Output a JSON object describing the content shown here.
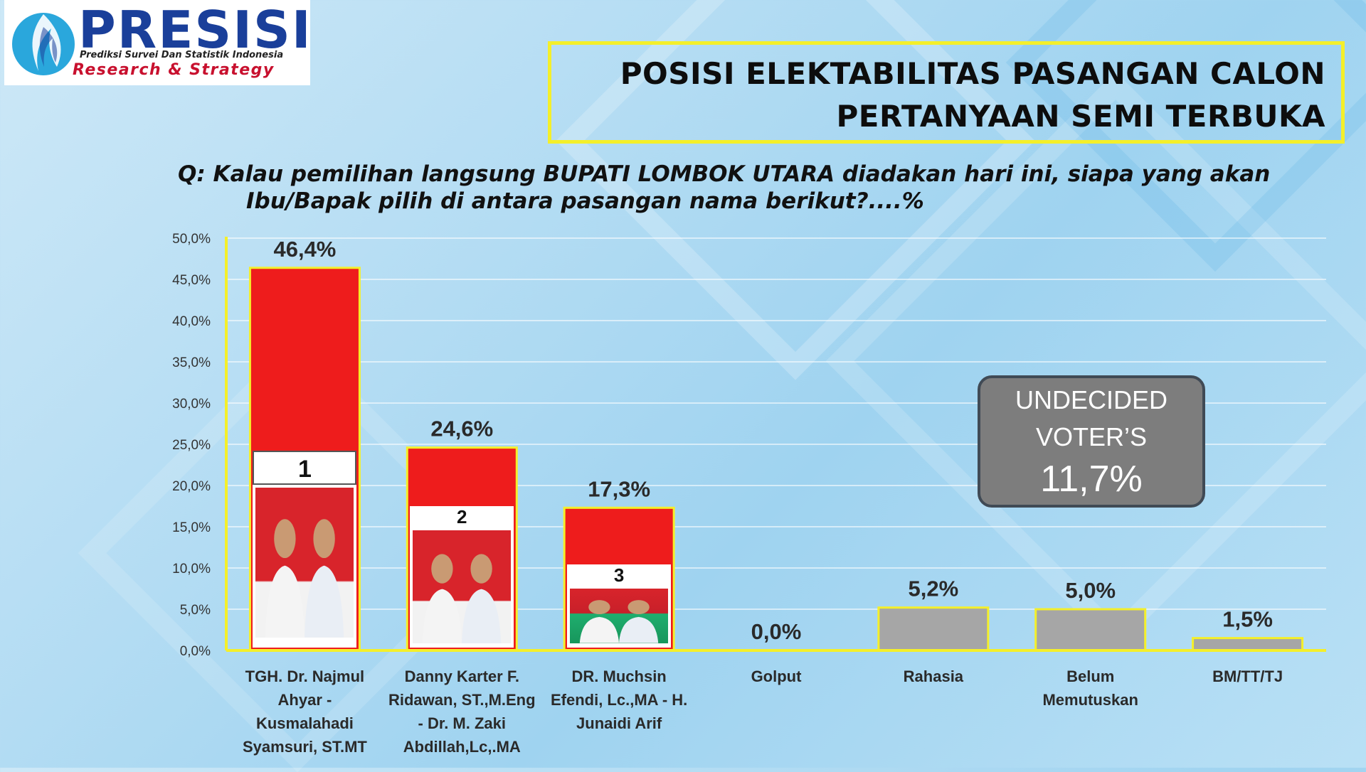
{
  "logo": {
    "name": "PRESISI",
    "tagline": "Prediksi Survei Dan Statistik Indonesia",
    "sub": "Research & Strategy"
  },
  "title": {
    "line1": "POSISI ELEKTABILITAS PASANGAN CALON",
    "line2": "PERTANYAAN SEMI TERBUKA"
  },
  "question": {
    "line1": "Q: Kalau pemilihan langsung BUPATI LOMBOK UTARA diadakan hari ini, siapa yang akan",
    "line2": "Ibu/Bapak pilih di antara pasangan nama berikut?....%"
  },
  "undecided": {
    "line1": "UNDECIDED",
    "line2": "VOTER’S",
    "value": "11,7%"
  },
  "colors": {
    "candidate_bar": "#ee1c1c",
    "other_bar": "#a6a6a6",
    "bar_outline": "#f4ef2a",
    "axis": "#f4ef2a",
    "gridline": "#ffffff"
  },
  "chart_data": {
    "type": "bar",
    "categories": [
      [
        "TGH. Dr. Najmul",
        "Ahyar -",
        "Kusmalahadi",
        "Syamsuri, ST.MT"
      ],
      [
        "Danny Karter F.",
        "Ridawan, ST.,M.Eng",
        "- Dr. M. Zaki",
        "Abdillah,Lc,.MA"
      ],
      [
        "DR. Muchsin",
        "Efendi, Lc.,MA - H.",
        "Junaidi Arif"
      ],
      [
        "Golput"
      ],
      [
        "Rahasia"
      ],
      [
        "Belum",
        "Memutuskan"
      ],
      [
        "BM/TT/TJ"
      ]
    ],
    "values": [
      46.4,
      24.6,
      17.3,
      0.0,
      5.2,
      5.0,
      1.5
    ],
    "value_labels": [
      "46,4%",
      "24,6%",
      "17,3%",
      "0,0%",
      "5,2%",
      "5,0%",
      "1,5%"
    ],
    "candidate_numbers": [
      "1",
      "2",
      "3"
    ],
    "bar_kinds": [
      "candidate",
      "candidate",
      "candidate",
      "other",
      "other",
      "other",
      "other"
    ],
    "ylim": [
      0,
      50
    ],
    "yticks": [
      0,
      5,
      10,
      15,
      20,
      25,
      30,
      35,
      40,
      45,
      50
    ],
    "ytick_labels": [
      "0,0%",
      "5,0%",
      "10,0%",
      "15,0%",
      "20,0%",
      "25,0%",
      "30,0%",
      "35,0%",
      "40,0%",
      "45,0%",
      "50,0%"
    ],
    "grid": true,
    "legend": "none"
  }
}
